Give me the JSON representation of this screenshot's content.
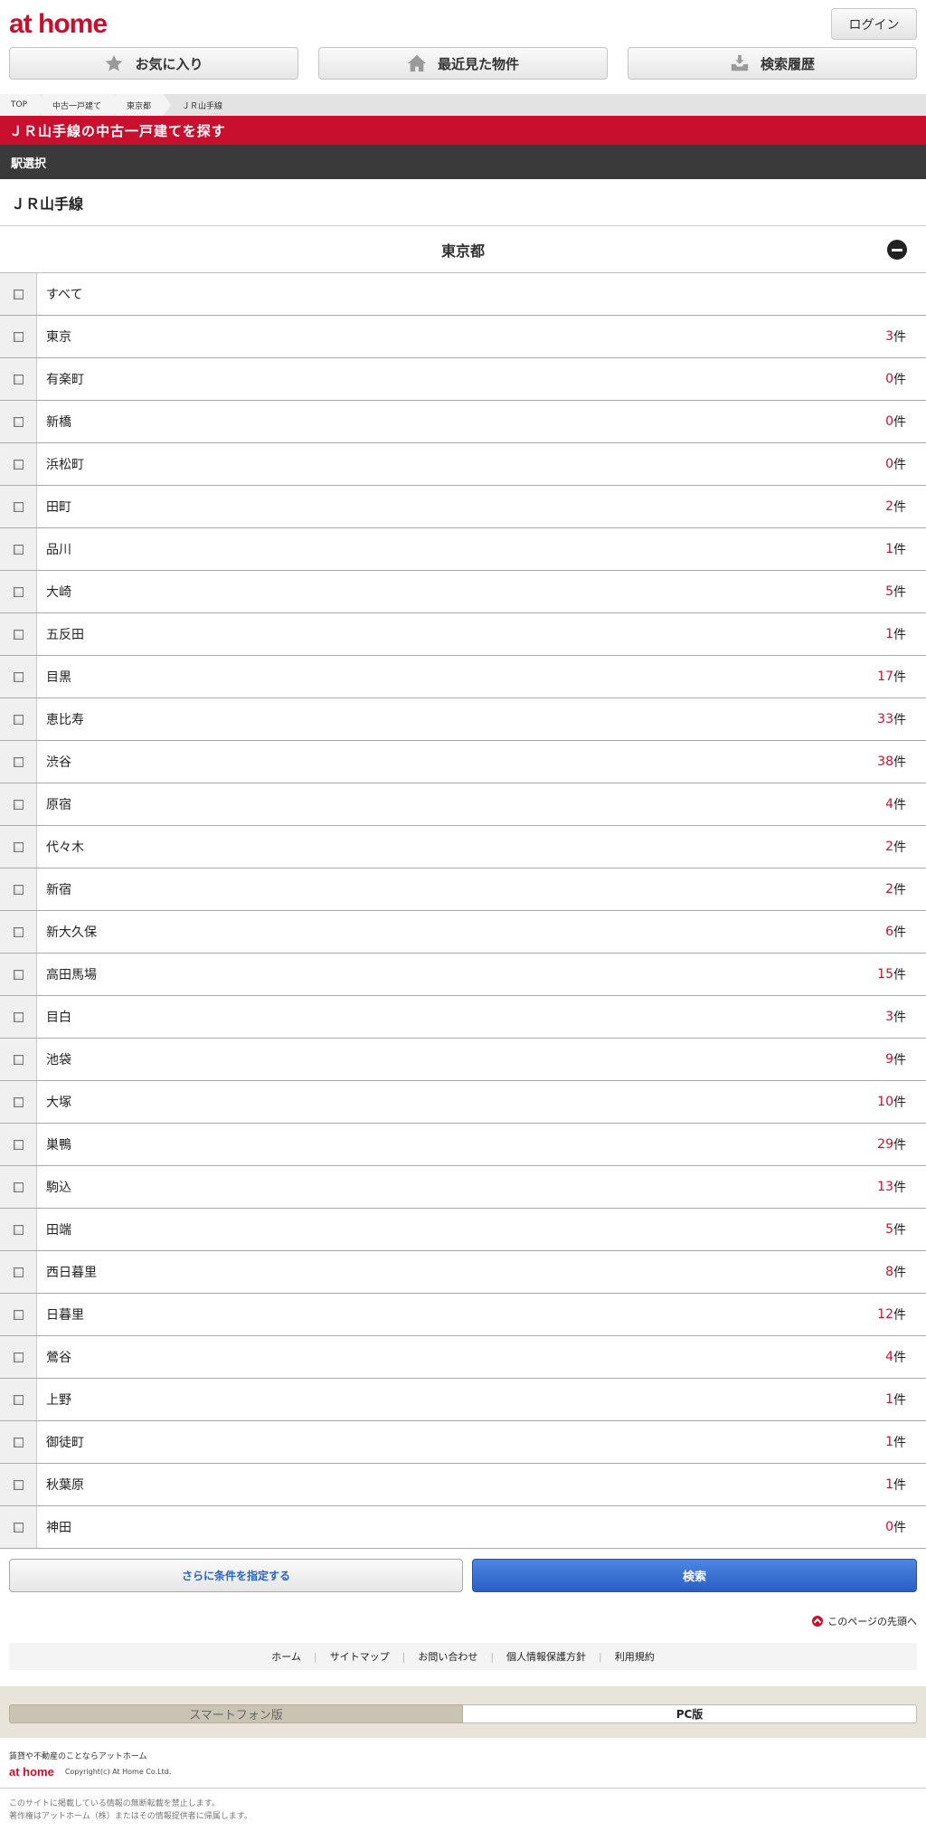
{
  "header": {
    "logo": "at home",
    "login_label": "ログイン"
  },
  "nav": {
    "favorites_label": "お気に入り",
    "recent_label": "最近見た物件",
    "history_label": "検索履歴"
  },
  "breadcrumb": [
    "TOP",
    "中古一戸建て",
    "東京都",
    "ＪＲ山手線"
  ],
  "red_title": "ＪＲ山手線の中古一戸建てを探す",
  "section_label": "駅選択",
  "line_title": "ＪＲ山手線",
  "prefecture": "東京都",
  "all_label": "すべて",
  "count_suffix": "件",
  "stations": [
    {
      "name": "東京",
      "count": "3"
    },
    {
      "name": "有楽町",
      "count": "0"
    },
    {
      "name": "新橋",
      "count": "0"
    },
    {
      "name": "浜松町",
      "count": "0"
    },
    {
      "name": "田町",
      "count": "2"
    },
    {
      "name": "品川",
      "count": "1"
    },
    {
      "name": "大崎",
      "count": "5"
    },
    {
      "name": "五反田",
      "count": "1"
    },
    {
      "name": "目黒",
      "count": "17"
    },
    {
      "name": "恵比寿",
      "count": "33"
    },
    {
      "name": "渋谷",
      "count": "38"
    },
    {
      "name": "原宿",
      "count": "4"
    },
    {
      "name": "代々木",
      "count": "2"
    },
    {
      "name": "新宿",
      "count": "2"
    },
    {
      "name": "新大久保",
      "count": "6"
    },
    {
      "name": "高田馬場",
      "count": "15"
    },
    {
      "name": "目白",
      "count": "3"
    },
    {
      "name": "池袋",
      "count": "9"
    },
    {
      "name": "大塚",
      "count": "10"
    },
    {
      "name": "巣鴨",
      "count": "29"
    },
    {
      "name": "駒込",
      "count": "13"
    },
    {
      "name": "田端",
      "count": "5"
    },
    {
      "name": "西日暮里",
      "count": "8"
    },
    {
      "name": "日暮里",
      "count": "12"
    },
    {
      "name": "鶯谷",
      "count": "4"
    },
    {
      "name": "上野",
      "count": "1"
    },
    {
      "name": "御徒町",
      "count": "1"
    },
    {
      "name": "秋葉原",
      "count": "1"
    },
    {
      "name": "神田",
      "count": "0"
    }
  ],
  "actions": {
    "more_label": "さらに条件を指定する",
    "search_label": "検索"
  },
  "page_top_label": "このページの先頭へ",
  "footer_links": [
    "ホーム",
    "サイトマップ",
    "お問い合わせ",
    "個人情報保護方針",
    "利用規約"
  ],
  "versions": {
    "smartphone_label": "スマートフォン版",
    "pc_label": "PC版"
  },
  "footer": {
    "tagline": "賃貸や不動産のことならアットホーム",
    "logo": "at home",
    "copyright": "Copyright(c) At Home Co.Ltd.",
    "notice_1": "このサイトに掲載している情報の無断転載を禁止します。",
    "notice_2": "著作権はアットホーム（株）またはその情報提供者に帰属します。"
  },
  "colors": {
    "brand_red": "#c8102e",
    "search_blue": "#2a5fc4",
    "dark_bar": "#3a3a3a"
  }
}
